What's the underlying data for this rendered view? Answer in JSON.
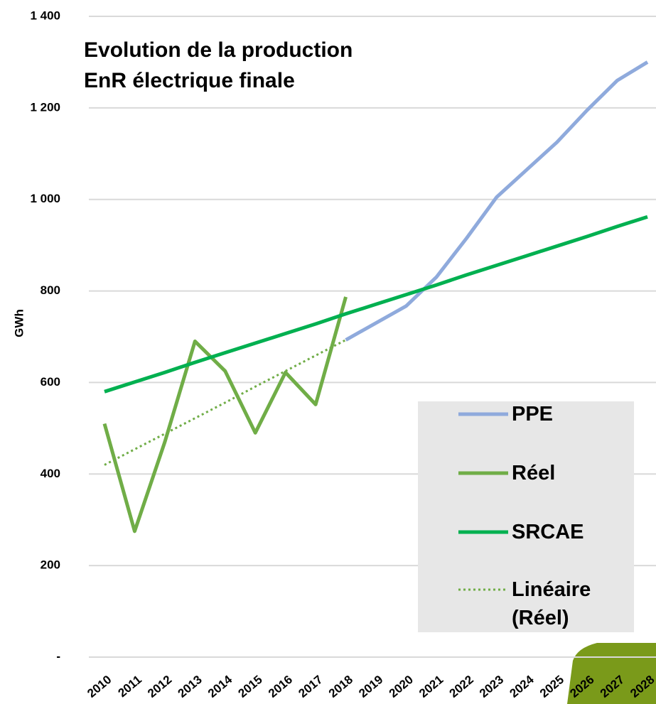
{
  "chart_data": {
    "type": "line",
    "title": [
      "Evolution de la production",
      "EnR électrique finale"
    ],
    "y_label": "GWh",
    "categories": [
      "2010",
      "2011",
      "2012",
      "2013",
      "2014",
      "2015",
      "2016",
      "2017",
      "2018",
      "2019",
      "2020",
      "2021",
      "2022",
      "2023",
      "2024",
      "2025",
      "2026",
      "2027",
      "2028"
    ],
    "series": [
      {
        "name": "PPE",
        "color": "#8faadc",
        "style": "solid",
        "values": [
          null,
          null,
          null,
          null,
          null,
          null,
          null,
          null,
          693,
          730,
          767,
          830,
          915,
          1005,
          1065,
          1125,
          1195,
          1260,
          1300
        ]
      },
      {
        "name": "Réel",
        "color": "#70ad47",
        "style": "solid",
        "values": [
          510,
          275,
          470,
          690,
          625,
          490,
          622,
          552,
          787,
          null,
          null,
          null,
          null,
          null,
          null,
          null,
          null,
          null,
          null
        ]
      },
      {
        "name": "SRCAE",
        "color": "#00b050",
        "style": "solid",
        "values": [
          580,
          601,
          622,
          644,
          665,
          686,
          707,
          728,
          750,
          771,
          792,
          813,
          835,
          856,
          877,
          898,
          919,
          941,
          962
        ]
      },
      {
        "name": "Linéaire (Réel)",
        "color": "#70ad47",
        "style": "dotted",
        "values": [
          420,
          454,
          488,
          522,
          556,
          591,
          625,
          659,
          693,
          null,
          null,
          null,
          null,
          null,
          null,
          null,
          null,
          null,
          null
        ]
      }
    ],
    "ylim": [
      0,
      1400
    ],
    "yticks": [
      {
        "value": 0,
        "label": "-"
      },
      200,
      400,
      600,
      800,
      {
        "value": 1000,
        "label": "1 000"
      },
      {
        "value": 1200,
        "label": "1 200"
      },
      {
        "value": 1400,
        "label": "1 400"
      }
    ],
    "grid": true,
    "legend": "lower right"
  }
}
